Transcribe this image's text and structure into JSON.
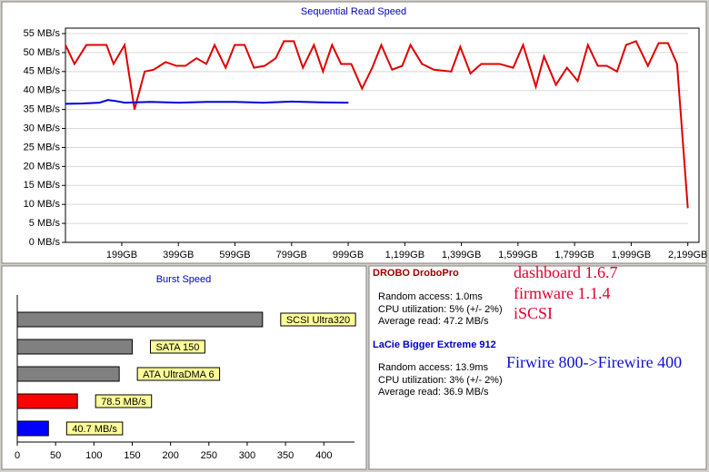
{
  "chart_data": [
    {
      "type": "line",
      "title": "Sequential Read Speed",
      "xlim": [
        0,
        2200
      ],
      "xticks": [
        {
          "value": 199,
          "label": "199GB"
        },
        {
          "value": 399,
          "label": "399GB"
        },
        {
          "value": 599,
          "label": "599GB"
        },
        {
          "value": 799,
          "label": "799GB"
        },
        {
          "value": 999,
          "label": "999GB"
        },
        {
          "value": 1199,
          "label": "1,199GB"
        },
        {
          "value": 1399,
          "label": "1,399GB"
        },
        {
          "value": 1599,
          "label": "1,599GB"
        },
        {
          "value": 1799,
          "label": "1,799GB"
        },
        {
          "value": 1999,
          "label": "1,999GB"
        },
        {
          "value": 2199,
          "label": "2,199GB"
        }
      ],
      "ylim": [
        0,
        55
      ],
      "yticks": [
        {
          "value": 0,
          "label": "0 MB/s"
        },
        {
          "value": 5,
          "label": "5 MB/s"
        },
        {
          "value": 10,
          "label": "10 MB/s"
        },
        {
          "value": 15,
          "label": "15 MB/s"
        },
        {
          "value": 20,
          "label": "20 MB/s"
        },
        {
          "value": 25,
          "label": "25 MB/s"
        },
        {
          "value": 30,
          "label": "30 MB/s"
        },
        {
          "value": 35,
          "label": "35 MB/s"
        },
        {
          "value": 40,
          "label": "40 MB/s"
        },
        {
          "value": 45,
          "label": "45 MB/s"
        },
        {
          "value": 50,
          "label": "50 MB/s"
        },
        {
          "value": 55,
          "label": "55 MB/s"
        }
      ],
      "grid": true,
      "series": [
        {
          "name": "DROBO DroboPro",
          "color": "#e00000",
          "x": [
            0,
            32,
            74,
            145,
            170,
            209,
            244,
            280,
            312,
            354,
            392,
            424,
            463,
            498,
            527,
            566,
            598,
            633,
            666,
            704,
            743,
            772,
            807,
            839,
            878,
            910,
            942,
            974,
            1010,
            1048,
            1084,
            1116,
            1154,
            1190,
            1219,
            1260,
            1302,
            1363,
            1395,
            1431,
            1469,
            1534,
            1582,
            1617,
            1662,
            1691,
            1733,
            1772,
            1810,
            1846,
            1881,
            1913,
            1949,
            1981,
            2016,
            2058,
            2096,
            2129,
            2161,
            2199
          ],
          "values": [
            52,
            47,
            52,
            52,
            47,
            52,
            35,
            45,
            45.5,
            47.5,
            46.5,
            46.5,
            48.5,
            47,
            52,
            46,
            52,
            52,
            46,
            46.5,
            48.5,
            53,
            53,
            46,
            52,
            45,
            52,
            47,
            47,
            40.5,
            46,
            52,
            45.5,
            46.5,
            52,
            47,
            45.5,
            45,
            51.5,
            44.5,
            47,
            47,
            46,
            52,
            41,
            49,
            41.5,
            46,
            42.5,
            52,
            46.5,
            46.5,
            45,
            52,
            53,
            46.5,
            52.5,
            52.5,
            47,
            9
          ]
        },
        {
          "name": "LaCie Bigger Extreme 912",
          "color": "#0000e0",
          "x": [
            0,
            60,
            120,
            150,
            180,
            210,
            300,
            400,
            500,
            600,
            700,
            800,
            900,
            1000
          ],
          "values": [
            36.5,
            36.6,
            36.8,
            37.5,
            37.2,
            36.8,
            37,
            36.8,
            37,
            37,
            36.8,
            37.1,
            36.9,
            36.8
          ]
        }
      ]
    },
    {
      "type": "bar",
      "orientation": "horizontal",
      "title": "Burst Speed",
      "categories": [
        "SCSI Ultra320",
        "SATA 150",
        "ATA UltraDMA 6",
        null,
        null
      ],
      "values": [
        320,
        150,
        133,
        78.5,
        40.7
      ],
      "value_labels": [
        null,
        null,
        null,
        "78.5 MB/s",
        "40.7 MB/s"
      ],
      "colors": [
        "#808080",
        "#808080",
        "#808080",
        "#ff0000",
        "#0000ff"
      ],
      "label_color": "#ffff99",
      "xlim": [
        0,
        440
      ],
      "xticks": [
        0,
        50,
        100,
        150,
        200,
        250,
        300,
        350,
        400
      ]
    }
  ],
  "info_panel": {
    "drives": [
      {
        "stats": [
          "Random access: 1.0ms",
          "CPU utilization: 5% (+/- 2%)",
          "Average read: 47.2 MB/s"
        ],
        "notes": [
          "dashboard 1.6.7",
          "firmware 1.1.4",
          "iSCSI"
        ]
      },
      {
        "stats": [
          "Random access: 13.9ms",
          "CPU utilization: 3% (+/- 2%)",
          "Average read: 36.9 MB/s"
        ],
        "notes": [
          "Firwire 800->Firewire 400"
        ]
      }
    ]
  }
}
